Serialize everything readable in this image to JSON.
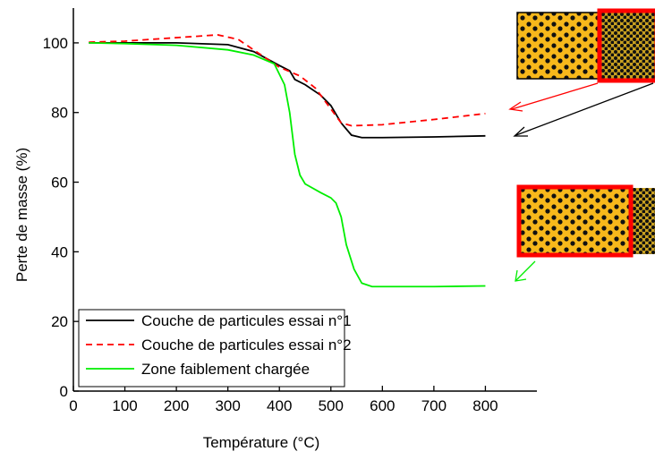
{
  "chart_data": {
    "type": "line",
    "xlabel": "Température (°C)",
    "ylabel": "Perte de masse (%)",
    "xlim": [
      0,
      900
    ],
    "ylim": [
      0,
      110
    ],
    "xticks": [
      0,
      100,
      200,
      300,
      400,
      500,
      600,
      700,
      800
    ],
    "yticks": [
      0,
      20,
      40,
      60,
      80,
      100
    ],
    "legend": "lower left",
    "series": [
      {
        "name": "Couche de particules essai n°1",
        "color": "#000000",
        "dash": "solid",
        "x": [
          30,
          100,
          200,
          300,
          350,
          400,
          420,
          430,
          450,
          480,
          500,
          520,
          540,
          560,
          600,
          700,
          800
        ],
        "values": [
          100,
          100,
          100,
          99.5,
          97.5,
          93.5,
          92,
          89.5,
          88,
          85,
          82,
          77,
          73.5,
          72.8,
          72.8,
          73,
          73.3
        ]
      },
      {
        "name": "Couche de particules essai n°2",
        "color": "#ff0000",
        "dash": "dashed",
        "x": [
          30,
          100,
          200,
          280,
          320,
          360,
          400,
          440,
          470,
          500,
          520,
          540,
          600,
          700,
          800
        ],
        "values": [
          100.2,
          100.5,
          101.5,
          102.3,
          101,
          97,
          93,
          90.5,
          87,
          81,
          77,
          76.2,
          76.5,
          78,
          79.7
        ]
      },
      {
        "name": "Zone faiblement chargée",
        "color": "#00ee00",
        "dash": "solid",
        "x": [
          30,
          100,
          200,
          300,
          350,
          390,
          410,
          420,
          430,
          440,
          450,
          480,
          500,
          510,
          520,
          530,
          545,
          560,
          580,
          700,
          800
        ],
        "values": [
          100,
          99.8,
          99.3,
          98,
          96.5,
          94,
          88,
          80,
          68,
          62,
          59.5,
          57,
          55.5,
          54,
          50,
          42,
          35,
          31,
          30,
          30,
          30.2
        ]
      }
    ]
  }
}
